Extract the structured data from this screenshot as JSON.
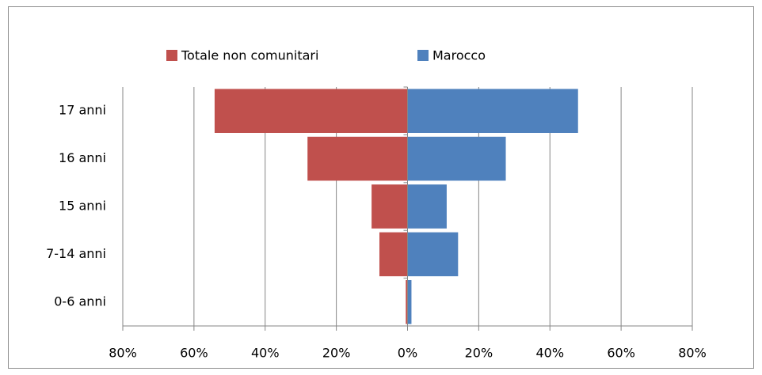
{
  "chart_data": {
    "type": "bar",
    "orientation": "horizontal",
    "stacked": false,
    "categories": [
      "17 anni",
      "16 anni",
      "15 anni",
      "7-14 anni",
      "0-6 anni"
    ],
    "series": [
      {
        "name": "Totale non comunitari",
        "color": "#c0504d",
        "values": [
          -54.2,
          -28.1,
          -10.1,
          -7.9,
          -0.5
        ]
      },
      {
        "name": "Marocco",
        "color": "#4f81bd",
        "values": [
          47.9,
          27.6,
          11.0,
          14.2,
          1.1
        ]
      }
    ],
    "xlim": [
      -80,
      80
    ],
    "xticks": [
      {
        "value": -80,
        "label": "80%"
      },
      {
        "value": -60,
        "label": "60%"
      },
      {
        "value": -40,
        "label": "40%"
      },
      {
        "value": -20,
        "label": "20%"
      },
      {
        "value": 0,
        "label": "0%"
      },
      {
        "value": 20,
        "label": "20%"
      },
      {
        "value": 40,
        "label": "40%"
      },
      {
        "value": 60,
        "label": "60%"
      },
      {
        "value": 80,
        "label": "80%"
      }
    ],
    "grid": true,
    "legend": "top"
  }
}
